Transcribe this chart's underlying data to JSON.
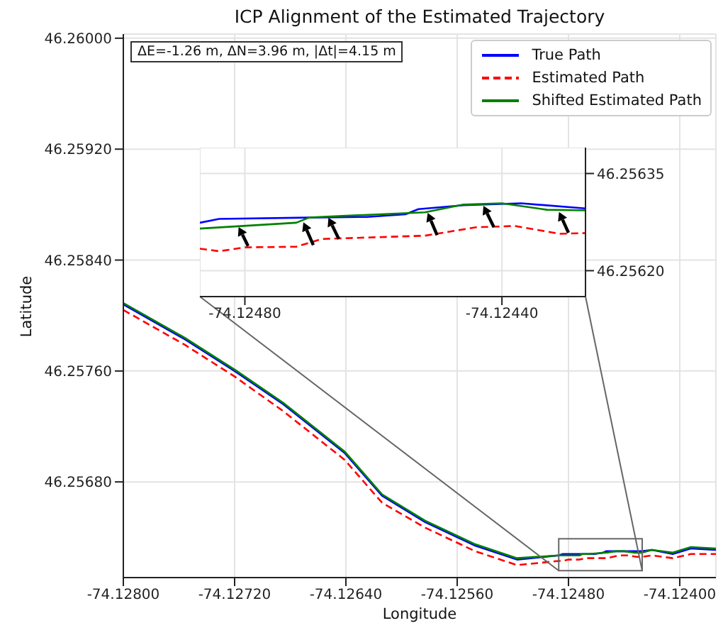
{
  "chart_data": [
    {
      "type": "line",
      "title": "ICP Alignment of the Estimated Trajectory",
      "xlabel": "Longitude",
      "ylabel": "Latitude",
      "annotations": [
        "ΔE=-1.26 m, ΔN=3.96 m, |Δt|=4.15 m"
      ],
      "xlim": [
        -74.128,
        -74.12374
      ],
      "ylim": [
        46.25611,
        46.26003
      ],
      "xticks": [
        {
          "value": -74.128,
          "label": "-74.12800"
        },
        {
          "value": -74.1272,
          "label": "-74.12720"
        },
        {
          "value": -74.1264,
          "label": "-74.12640"
        },
        {
          "value": -74.1256,
          "label": "-74.12560"
        },
        {
          "value": -74.1248,
          "label": "-74.12480"
        },
        {
          "value": -74.124,
          "label": "-74.12400"
        }
      ],
      "yticks": [
        {
          "value": 46.2568,
          "label": "46.25680"
        },
        {
          "value": 46.2576,
          "label": "46.25760"
        },
        {
          "value": 46.2584,
          "label": "46.25840"
        },
        {
          "value": 46.2592,
          "label": "46.25920"
        },
        {
          "value": 46.26,
          "label": "46.26000"
        }
      ],
      "grid": true,
      "legend": "top right",
      "series": [
        {
          "name": "True Path",
          "color": "#0000ff",
          "line_style": "solid",
          "x": [
            -74.128,
            -74.12756,
            -74.1272,
            -74.12685,
            -74.12641,
            -74.12614,
            -74.12583,
            -74.12547,
            -74.12517,
            -74.12487,
            -74.12484,
            -74.1247,
            -74.12461,
            -74.12455,
            -74.12453,
            -74.12446,
            -74.12437,
            -74.12427,
            -74.1242,
            -74.12405,
            -74.12392,
            -74.12374
          ],
          "values": [
            46.25808,
            46.25783,
            46.2576,
            46.25736,
            46.25701,
            46.2567,
            46.25651,
            46.25634,
            46.25624,
            46.25627,
            46.25628,
            46.25628,
            46.25628,
            46.25629,
            46.2563,
            46.2563,
            46.2563,
            46.2563,
            46.25631,
            46.25628,
            46.25632,
            46.25631
          ]
        },
        {
          "name": "Estimated Path",
          "color": "#ff0000",
          "line_style": "dashed",
          "x": [
            -74.128,
            -74.12756,
            -74.1272,
            -74.12685,
            -74.12641,
            -74.12614,
            -74.12583,
            -74.12547,
            -74.12517,
            -74.12487,
            -74.12484,
            -74.1248,
            -74.12472,
            -74.12468,
            -74.12452,
            -74.12444,
            -74.12438,
            -74.12431,
            -74.12427,
            -74.1242,
            -74.12405,
            -74.12392,
            -74.12374
          ],
          "values": [
            46.25804,
            46.25779,
            46.25756,
            46.25731,
            46.25696,
            46.25665,
            46.25647,
            46.2563,
            46.2562,
            46.25623,
            46.25623,
            46.25624,
            46.25624,
            46.25625,
            46.25625,
            46.25627,
            46.25627,
            46.25626,
            46.25626,
            46.25627,
            46.25625,
            46.25628,
            46.25628
          ]
        },
        {
          "name": "Shifted Estimated Path",
          "color": "#008000",
          "line_style": "solid",
          "x": [
            -74.128,
            -74.12756,
            -74.1272,
            -74.12685,
            -74.12641,
            -74.12614,
            -74.12583,
            -74.12547,
            -74.12517,
            -74.12487,
            -74.12477,
            -74.12472,
            -74.1247,
            -74.12466,
            -74.12452,
            -74.12446,
            -74.1244,
            -74.12433,
            -74.12427,
            -74.1242,
            -74.12405,
            -74.12392,
            -74.12374
          ],
          "values": [
            46.25809,
            46.25784,
            46.25761,
            46.25737,
            46.25702,
            46.25671,
            46.25652,
            46.25635,
            46.25625,
            46.25627,
            46.25627,
            46.25627,
            46.25628,
            46.25628,
            46.25629,
            46.2563,
            46.2563,
            46.25629,
            46.25629,
            46.25631,
            46.25629,
            46.25633,
            46.25632
          ]
        }
      ]
    },
    {
      "type": "line",
      "xlim": [
        -74.12487,
        -74.12427
      ],
      "ylim": [
        46.25616,
        46.25639
      ],
      "xticks": [
        {
          "value": -74.1248,
          "label": "-74.12480"
        },
        {
          "value": -74.1244,
          "label": "-74.12440"
        }
      ],
      "yticks": [
        {
          "value": 46.2562,
          "label": "46.25620"
        },
        {
          "value": 46.25635,
          "label": "46.25635"
        }
      ],
      "grid": true,
      "series": [
        {
          "color": "#0000ff",
          "line_style": "solid",
          "x": [
            -74.12487,
            -74.12484,
            -74.1247,
            -74.12461,
            -74.12455,
            -74.12453,
            -74.12446,
            -74.12437,
            -74.12427
          ],
          "values": [
            46.256274,
            46.25628,
            46.256282,
            46.256283,
            46.256287,
            46.256295,
            46.256301,
            46.256304,
            46.256296
          ]
        },
        {
          "color": "#ff0000",
          "line_style": "dashed",
          "x": [
            -74.12487,
            -74.12484,
            -74.1248,
            -74.12472,
            -74.12468,
            -74.12452,
            -74.12444,
            -74.12438,
            -74.12431,
            -74.12427
          ],
          "values": [
            46.256234,
            46.25623,
            46.256236,
            46.256237,
            46.256249,
            46.256254,
            46.256267,
            46.256269,
            46.256257,
            46.256258
          ]
        },
        {
          "color": "#008000",
          "line_style": "solid",
          "x": [
            -74.12487,
            -74.12477,
            -74.12472,
            -74.1247,
            -74.12466,
            -74.12452,
            -74.12446,
            -74.1244,
            -74.12433,
            -74.12427
          ],
          "values": [
            46.256265,
            46.256271,
            46.256274,
            46.256282,
            46.256284,
            46.25629,
            46.256302,
            46.256304,
            46.256294,
            46.256293
          ]
        }
      ]
    }
  ]
}
